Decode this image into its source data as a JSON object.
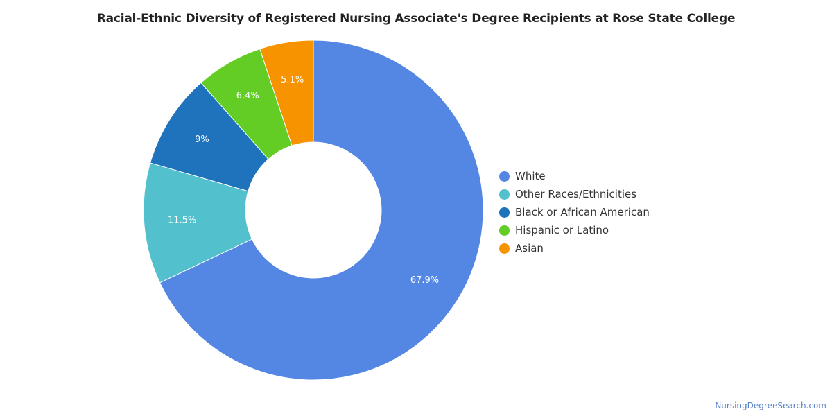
{
  "chart_data": {
    "type": "pie",
    "title": "Racial-Ethnic Diversity of Registered Nursing Associate's Degree Recipients at Rose State College",
    "donut": true,
    "legend_placement": "right",
    "slices": [
      {
        "name": "White",
        "value": 67.9,
        "label": "67.9%",
        "color": "#5486e3"
      },
      {
        "name": "Other Races/Ethnicities",
        "value": 11.5,
        "label": "11.5%",
        "color": "#52c1cd"
      },
      {
        "name": "Black or African American",
        "value": 9.0,
        "label": "9%",
        "color": "#1f72bc"
      },
      {
        "name": "Hispanic or Latino",
        "value": 6.4,
        "label": "6.4%",
        "color": "#63cd26"
      },
      {
        "name": "Asian",
        "value": 5.1,
        "label": "5.1%",
        "color": "#f89300"
      }
    ]
  },
  "source": "NursingDegreeSearch.com"
}
